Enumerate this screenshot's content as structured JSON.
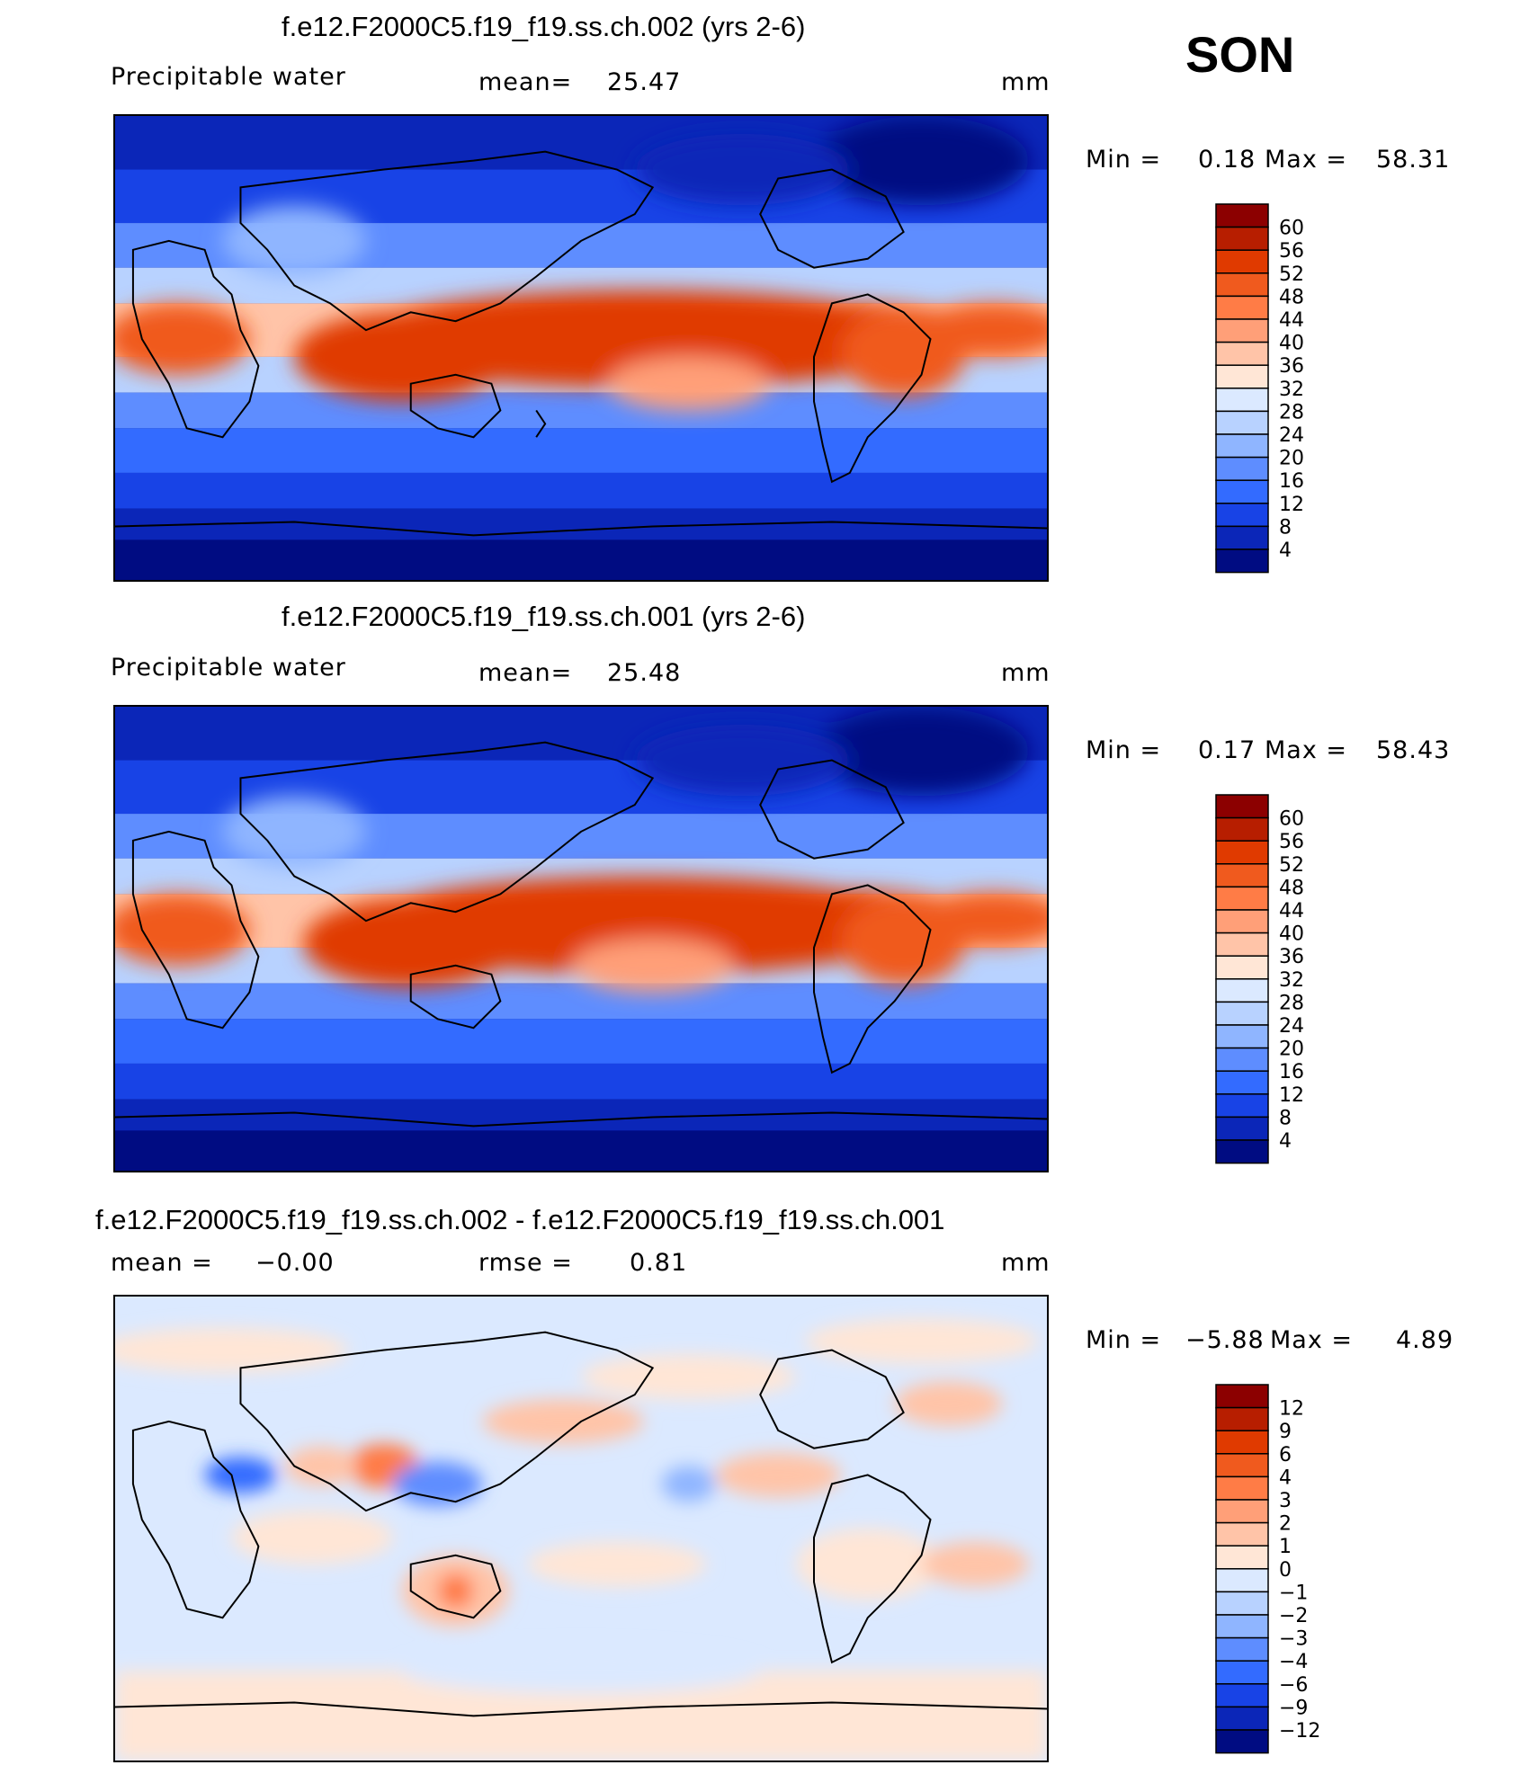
{
  "season": "SON",
  "chart_data": [
    {
      "type": "heatmap",
      "title": "f.e12.F2000C5.f19_f19.ss.ch.002 (yrs 2-6)",
      "variable": "Precipitable water",
      "mean_label": "mean=",
      "mean_value": "25.47",
      "units": "mm",
      "min_label": "Min =",
      "min_value": "0.18",
      "max_label": "Max =",
      "max_value": "58.31",
      "levels": [
        "60",
        "56",
        "52",
        "48",
        "44",
        "40",
        "36",
        "32",
        "28",
        "24",
        "20",
        "16",
        "12",
        "8",
        "4"
      ],
      "colors": [
        "#8c0000",
        "#b71e00",
        "#e03a00",
        "#f05a1e",
        "#ff7c46",
        "#ff9f78",
        "#ffc4a8",
        "#ffe6d6",
        "#dbe9ff",
        "#b8d2ff",
        "#8fb5ff",
        "#5e8dff",
        "#336bff",
        "#1843e6",
        "#0b26b8",
        "#000c82"
      ]
    },
    {
      "type": "heatmap",
      "title": "f.e12.F2000C5.f19_f19.ss.ch.001 (yrs 2-6)",
      "variable": "Precipitable water",
      "mean_label": "mean=",
      "mean_value": "25.48",
      "units": "mm",
      "min_label": "Min =",
      "min_value": "0.17",
      "max_label": "Max =",
      "max_value": "58.43",
      "levels": [
        "60",
        "56",
        "52",
        "48",
        "44",
        "40",
        "36",
        "32",
        "28",
        "24",
        "20",
        "16",
        "12",
        "8",
        "4"
      ],
      "colors": [
        "#8c0000",
        "#b71e00",
        "#e03a00",
        "#f05a1e",
        "#ff7c46",
        "#ff9f78",
        "#ffc4a8",
        "#ffe6d6",
        "#dbe9ff",
        "#b8d2ff",
        "#8fb5ff",
        "#5e8dff",
        "#336bff",
        "#1843e6",
        "#0b26b8",
        "#000c82"
      ]
    },
    {
      "type": "heatmap",
      "title": "f.e12.F2000C5.f19_f19.ss.ch.002 - f.e12.F2000C5.f19_f19.ss.ch.001",
      "mean_label": "mean =",
      "mean_value": "−0.00",
      "rmse_label": "rmse =",
      "rmse_value": "0.81",
      "units": "mm",
      "min_label": "Min =",
      "min_value": "−5.88",
      "max_label": "Max =",
      "max_value": "4.89",
      "levels": [
        "12",
        "9",
        "6",
        "4",
        "3",
        "2",
        "1",
        "0",
        "−1",
        "−2",
        "−3",
        "−4",
        "−6",
        "−9",
        "−12"
      ],
      "colors": [
        "#8c0000",
        "#b71e00",
        "#e03a00",
        "#f05a1e",
        "#ff7c46",
        "#ff9f78",
        "#ffc4a8",
        "#ffe6d6",
        "#dbe9ff",
        "#b8d2ff",
        "#8fb5ff",
        "#5e8dff",
        "#336bff",
        "#1843e6",
        "#0b26b8",
        "#000c82"
      ]
    }
  ]
}
